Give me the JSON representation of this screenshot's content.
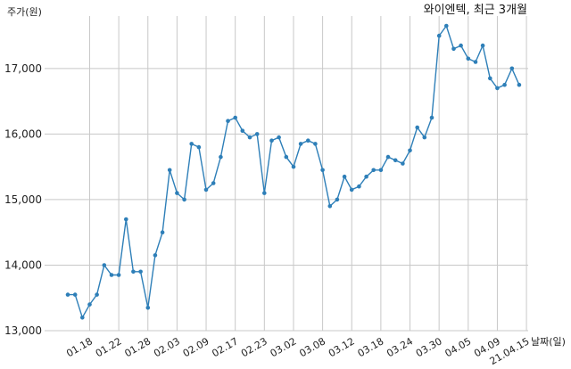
{
  "chart_data": {
    "type": "line",
    "title": "와이엔텍, 최근 3개월",
    "ylabel": "주가(원)",
    "xlabel": "날짜(일)",
    "ylim": [
      13000,
      17800
    ],
    "yticks": [
      13000,
      14000,
      15000,
      16000,
      17000
    ],
    "ytick_labels": [
      "13,000",
      "14,000",
      "15,000",
      "16,000",
      "17,000"
    ],
    "xticks": [
      {
        "label": "01.18",
        "index": 3
      },
      {
        "label": "01.22",
        "index": 7
      },
      {
        "label": "01.28",
        "index": 11
      },
      {
        "label": "02.03",
        "index": 15
      },
      {
        "label": "02.09",
        "index": 19
      },
      {
        "label": "02.17",
        "index": 23
      },
      {
        "label": "02.23",
        "index": 27
      },
      {
        "label": "03.02",
        "index": 31
      },
      {
        "label": "03.08",
        "index": 35
      },
      {
        "label": "03.12",
        "index": 39
      },
      {
        "label": "03.18",
        "index": 43
      },
      {
        "label": "03.24",
        "index": 47
      },
      {
        "label": "03.30",
        "index": 51
      },
      {
        "label": "04.05",
        "index": 55
      },
      {
        "label": "04.09",
        "index": 59
      },
      {
        "label": "21.04.15",
        "index": 63
      }
    ],
    "grid": true,
    "color": "#2e7fb8",
    "series": [
      {
        "values": [
          13550,
          13550,
          13200,
          13400,
          13550,
          14000,
          13850,
          13850,
          14700,
          13900,
          13900,
          13350,
          14150,
          14500,
          15450,
          15100,
          15000,
          15850,
          15800,
          15150,
          15250,
          15650,
          16200,
          16250,
          16050,
          15950,
          16000,
          15100,
          15900,
          15950,
          15650,
          15500,
          15850,
          15900,
          15850,
          15450,
          14900,
          15000,
          15350,
          15150,
          15200,
          15350,
          15450,
          15450,
          15650,
          15600,
          15550,
          15750,
          16100,
          15950,
          16250,
          17500,
          17650,
          17300,
          17350,
          17150,
          17100,
          17350,
          16850,
          16700,
          16750,
          17000,
          16750
        ]
      }
    ]
  }
}
